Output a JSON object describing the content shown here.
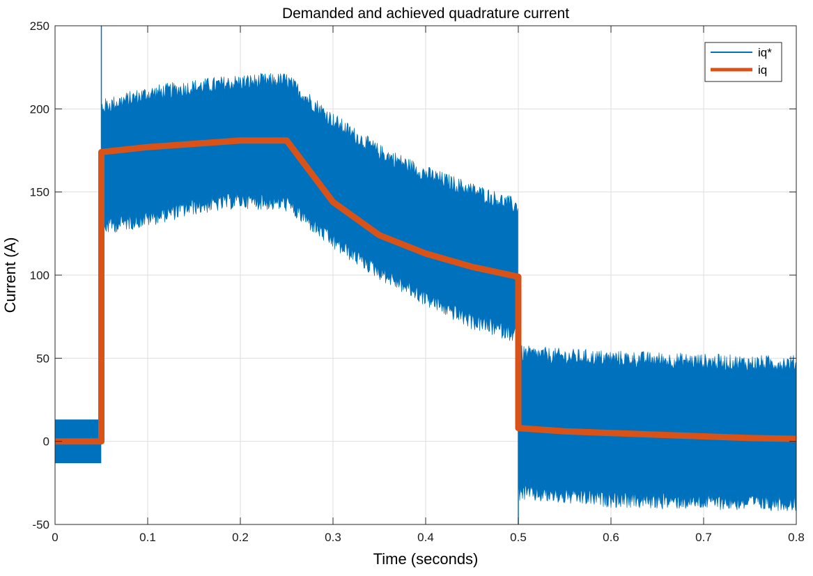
{
  "chart_data": {
    "type": "line",
    "title": "Demanded and achieved quadrature current",
    "xlabel": "Time (seconds)",
    "ylabel": "Current (A)",
    "xlim": [
      0,
      0.8
    ],
    "ylim": [
      -50,
      250
    ],
    "xticks": [
      0,
      0.1,
      0.2,
      0.3,
      0.4,
      0.5,
      0.6,
      0.7,
      0.8
    ],
    "xtick_labels": [
      "0",
      "0.1",
      "0.2",
      "0.3",
      "0.4",
      "0.5",
      "0.6",
      "0.7",
      "0.8"
    ],
    "yticks": [
      -50,
      0,
      50,
      100,
      150,
      200,
      250
    ],
    "ytick_labels": [
      "-50",
      "0",
      "50",
      "100",
      "150",
      "200",
      "250"
    ],
    "grid": true,
    "legend_position": "top-right",
    "series": [
      {
        "name": "iq*",
        "color": "#0072BD",
        "x": [
          0,
          0.05,
          0.05,
          0.1,
          0.15,
          0.2,
          0.25,
          0.3,
          0.35,
          0.4,
          0.45,
          0.5,
          0.5,
          0.55,
          0.6,
          0.65,
          0.7,
          0.75,
          0.8
        ],
        "upper": [
          13,
          13,
          198,
          206,
          210,
          213,
          214,
          190,
          171,
          158,
          148,
          138,
          50,
          48,
          47,
          46,
          45,
          44,
          44
        ],
        "lower": [
          -13,
          -13,
          132,
          137,
          144,
          148,
          146,
          123,
          105,
          89,
          75,
          67,
          -28,
          -30,
          -32,
          -33,
          -33,
          -34,
          -34
        ],
        "spikes": [
          {
            "x": 0.05,
            "y": 250
          },
          {
            "x": 0.5,
            "y": -50
          }
        ]
      },
      {
        "name": "iq",
        "color": "#D95319",
        "x": [
          0,
          0.05,
          0.05,
          0.1,
          0.15,
          0.2,
          0.25,
          0.3,
          0.35,
          0.4,
          0.45,
          0.5,
          0.5,
          0.55,
          0.6,
          0.65,
          0.7,
          0.75,
          0.8
        ],
        "y": [
          0,
          0,
          174,
          177,
          179,
          181,
          181,
          144,
          124,
          113,
          105,
          99,
          8,
          6,
          5,
          4,
          3,
          2,
          1.5
        ]
      }
    ]
  }
}
